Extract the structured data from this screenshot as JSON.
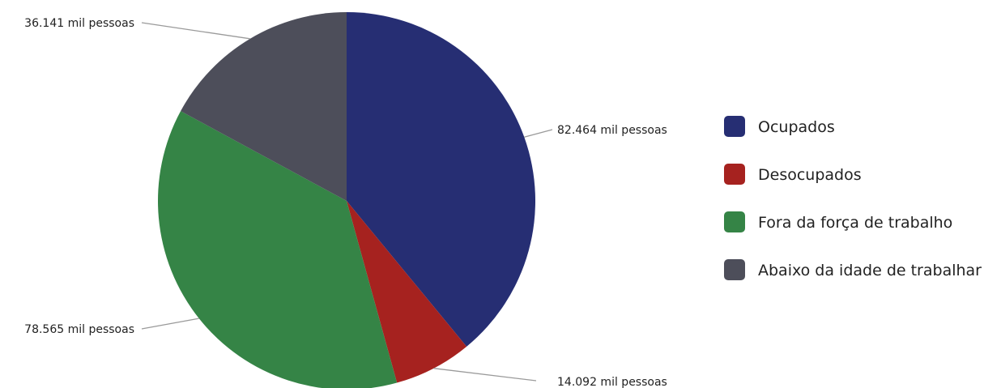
{
  "chart_data": {
    "type": "pie",
    "start_angle_deg": 0,
    "direction": "clockwise",
    "legend_position": "right",
    "slices": [
      {
        "name": "Ocupados",
        "value": 82.464,
        "label": "82.464 mil pessoas",
        "color": "#262e73"
      },
      {
        "name": "Desocupados",
        "value": 14.092,
        "label": "14.092 mil pessoas",
        "color": "#a6221f"
      },
      {
        "name": "Fora da força de trabalho",
        "value": 78.565,
        "label": "78.565 mil pessoas",
        "color": "#358446"
      },
      {
        "name": "Abaixo da idade de trabalhar",
        "value": 36.141,
        "label": "36.141 mil pessoas",
        "color": "#4d4e5a"
      }
    ]
  }
}
